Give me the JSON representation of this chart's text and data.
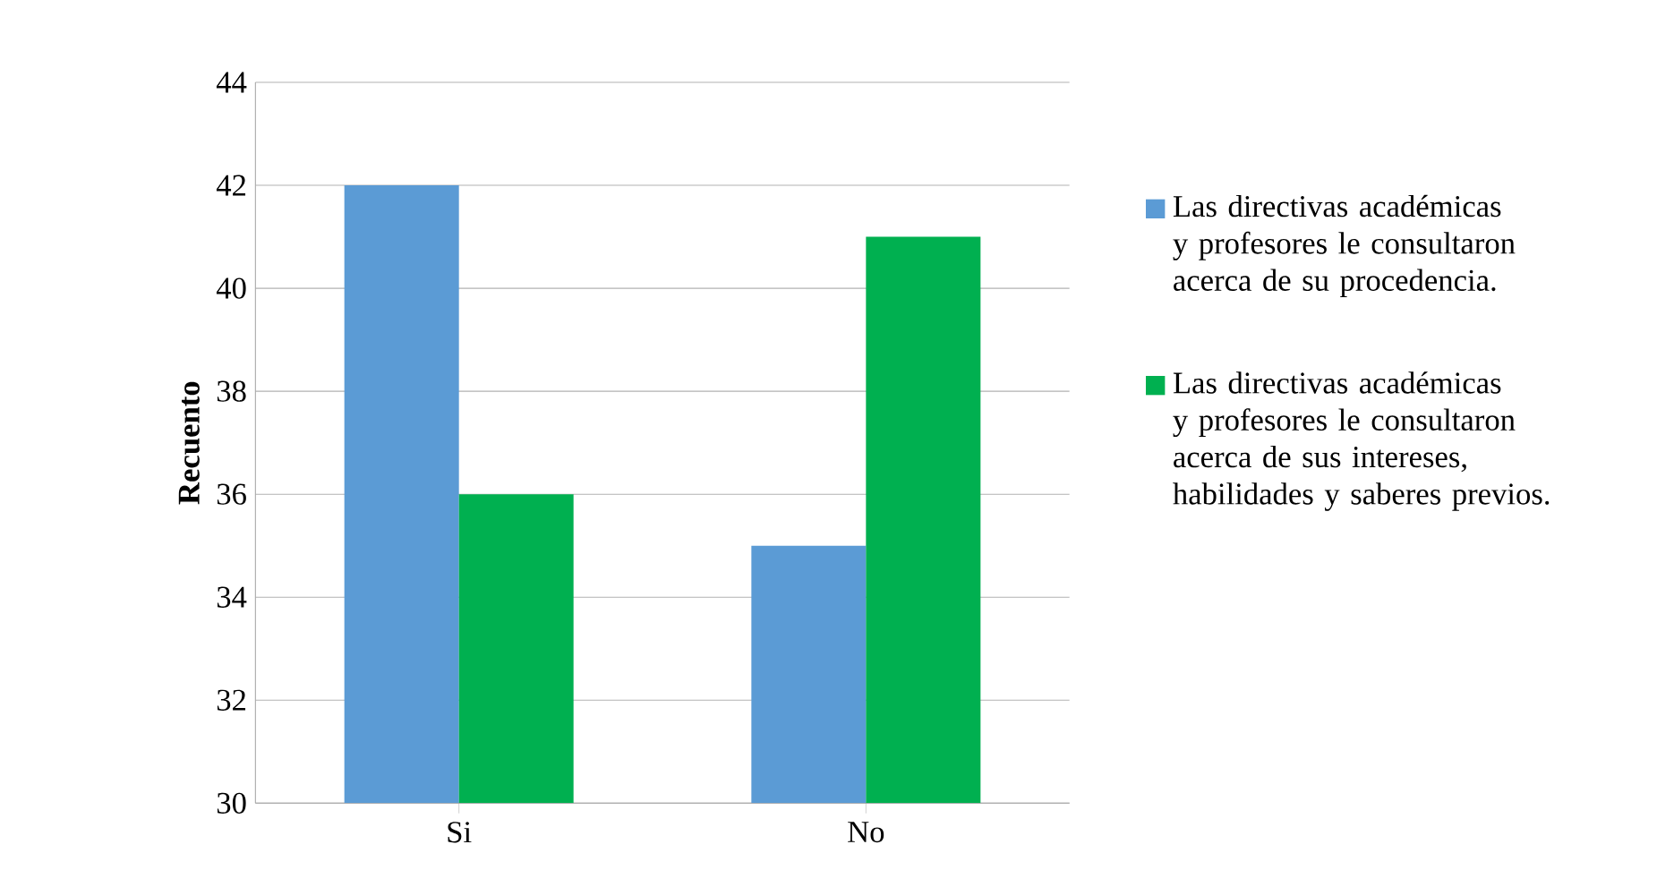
{
  "chart_data": {
    "type": "bar",
    "ylabel": "Recuento",
    "categories": [
      "Si",
      "No"
    ],
    "series": [
      {
        "name": "Las directivas académicas y profesores le consultaron acerca de su procedencia.",
        "color": "#5b9bd5",
        "values": [
          42,
          35
        ]
      },
      {
        "name": "Las directivas académicas y profesores le consultaron acerca de sus intereses, habilidades y saberes previos.",
        "color": "#00b050",
        "values": [
          36,
          41
        ]
      }
    ],
    "ylim": [
      30,
      44
    ],
    "yticks": [
      30,
      32,
      34,
      36,
      38,
      40,
      42,
      44
    ],
    "grid": "y",
    "legend": "right"
  }
}
